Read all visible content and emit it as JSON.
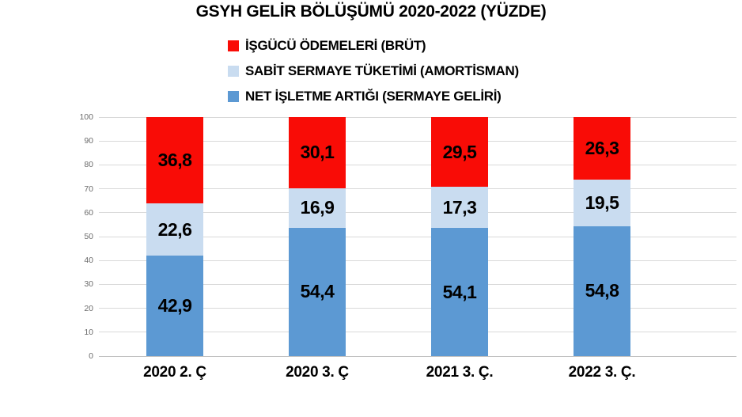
{
  "title": "GSYH GELİR BÖLÜŞÜMÜ 2020-2022 (YÜZDE)",
  "legend": [
    {
      "label": "İŞGÜCÜ ÖDEMELERİ (BRÜT)",
      "color": "#f90c06"
    },
    {
      "label": "SABİT SERMAYE TÜKETİMİ (AMORTİSMAN)",
      "color": "#c9dcf0"
    },
    {
      "label": "NET İŞLETME ARTIĞI (SERMAYE GELİRİ)",
      "color": "#5c99d3"
    }
  ],
  "chart_data": {
    "type": "bar",
    "stacked": true,
    "title": "GSYH GELİR BÖLÜŞÜMÜ 2020-2022 (YÜZDE)",
    "categories": [
      "2020 2. Ç",
      "2020 3. Ç",
      "2021 3. Ç.",
      "2022 3. Ç."
    ],
    "series": [
      {
        "name": "NET İŞLETME ARTIĞI (SERMAYE GELİRİ)",
        "color": "#5c99d3",
        "values": [
          42.9,
          54.4,
          54.1,
          54.8
        ]
      },
      {
        "name": "SABİT SERMAYE TÜKETİMİ (AMORTİSMAN)",
        "color": "#c9dcf0",
        "values": [
          22.6,
          16.9,
          17.3,
          19.5
        ]
      },
      {
        "name": "İŞGÜCÜ ÖDEMELERİ (BRÜT)",
        "color": "#f90c06",
        "values": [
          36.8,
          30.1,
          29.5,
          26.3
        ]
      }
    ],
    "stack_order": "bottom-to-top",
    "ylim": [
      0,
      100
    ],
    "ytick_step": 10,
    "grid": true,
    "legend_position": "top-left-above-plot",
    "value_label_decimal_separator": ",",
    "xlabel": "",
    "ylabel": ""
  }
}
